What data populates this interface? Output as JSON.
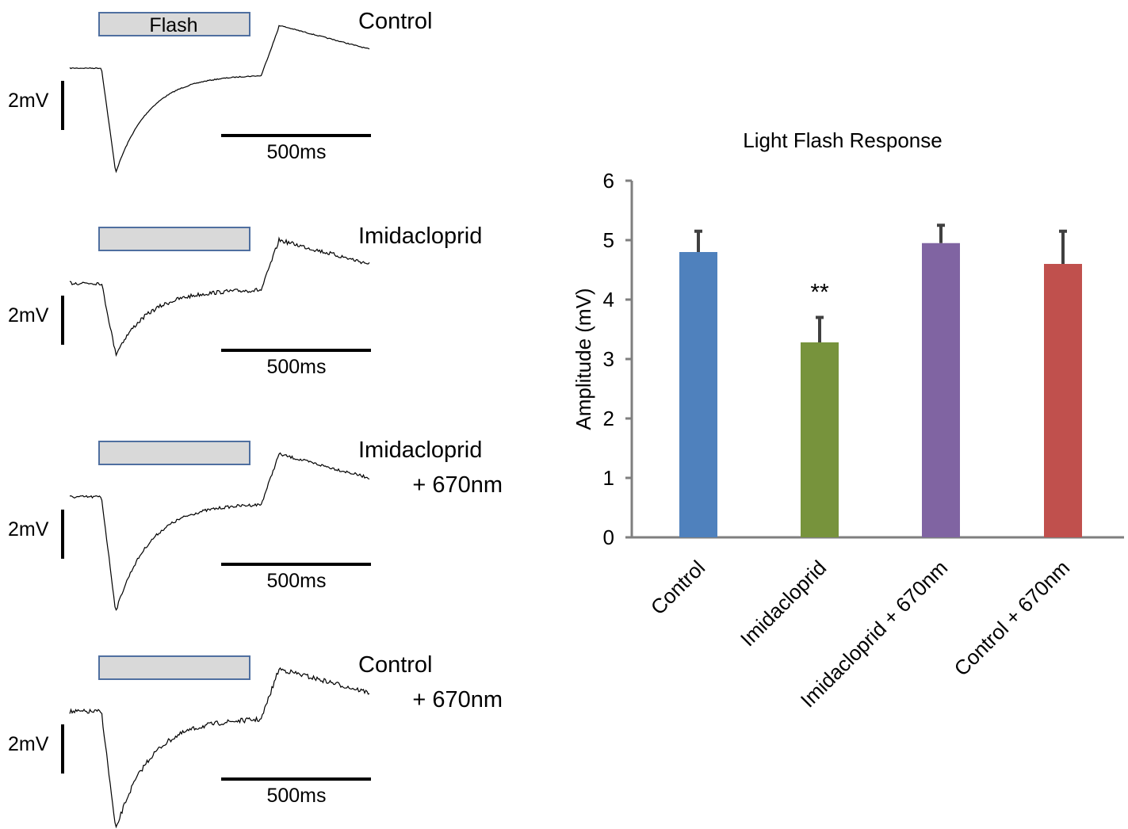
{
  "traces_panel": {
    "flash_label": "Flash",
    "voltage_scale_label": "2mV",
    "time_scale_label": "500ms",
    "panels": [
      {
        "title_lines": [
          "Control"
        ]
      },
      {
        "title_lines": [
          "Imidacloprid"
        ]
      },
      {
        "title_lines": [
          "Imidacloprid",
          "+ 670nm"
        ]
      },
      {
        "title_lines": [
          "Control",
          "+ 670nm"
        ]
      }
    ]
  },
  "chart_data": {
    "type": "bar",
    "title": "Light Flash Response",
    "xlabel": "",
    "ylabel": "Amplitude (mV)",
    "ylim": [
      0,
      6
    ],
    "yticks": [
      0,
      1,
      2,
      3,
      4,
      5,
      6
    ],
    "categories": [
      "Control",
      "Imidacloprid",
      "Imidacloprid + 670nm",
      "Control + 670nm"
    ],
    "values": [
      4.8,
      3.28,
      4.95,
      4.6
    ],
    "errors": [
      0.35,
      0.42,
      0.3,
      0.55
    ],
    "colors": [
      "#4f81bd",
      "#77933c",
      "#8064a2",
      "#c0504d"
    ],
    "annotations": [
      {
        "category": "Imidacloprid",
        "text": "**"
      }
    ],
    "grid": false,
    "legend": "none"
  },
  "colors": {
    "axis": "#7f7f7f",
    "error_bar": "#404040",
    "flash_fill": "#d9d9d9",
    "flash_stroke": "#4f6fa0",
    "trace": "#000000"
  }
}
